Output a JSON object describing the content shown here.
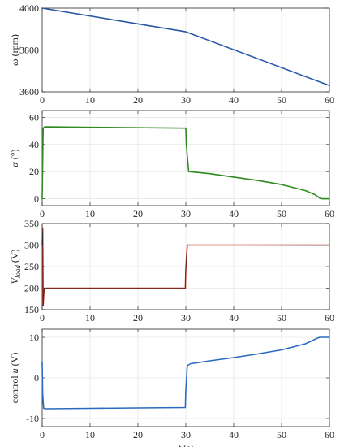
{
  "chart_data": [
    {
      "type": "line",
      "id": "omega",
      "ylabel_parts": [
        {
          "t": "ω",
          "i": true
        },
        {
          "t": " (rpm)"
        }
      ],
      "xlim": [
        0,
        60
      ],
      "ylim": [
        3600,
        4000
      ],
      "xticks": [
        0,
        10,
        20,
        30,
        40,
        50,
        60
      ],
      "yticks": [
        3600,
        3800,
        4000
      ],
      "grid": true,
      "series": [
        {
          "color": "#2857a4",
          "x": [
            0,
            30,
            60
          ],
          "y": [
            4000,
            3887,
            3630
          ]
        }
      ]
    },
    {
      "type": "line",
      "id": "alpha",
      "ylabel_parts": [
        {
          "t": "α",
          "i": true
        },
        {
          "t": " (°)"
        }
      ],
      "xlim": [
        0,
        60
      ],
      "ylim": [
        -5,
        65
      ],
      "xticks": [
        0,
        10,
        20,
        30,
        40,
        50,
        60
      ],
      "yticks": [
        0,
        20,
        40,
        60
      ],
      "grid": true,
      "series": [
        {
          "color": "#2e8b1e",
          "x": [
            0,
            0.2,
            0.5,
            30,
            30.1,
            30.6,
            35,
            40,
            45,
            50,
            55,
            57,
            58,
            58.5,
            60
          ],
          "y": [
            0,
            52,
            53,
            52,
            40,
            20,
            18.5,
            16,
            13.5,
            10.5,
            6,
            3,
            0.5,
            0,
            0
          ]
        }
      ]
    },
    {
      "type": "line",
      "id": "vload",
      "ylabel_parts": [
        {
          "t": "V",
          "i": true
        },
        {
          "t": "load",
          "i": true,
          "sub": true
        },
        {
          "t": " (V)"
        }
      ],
      "xlim": [
        0,
        60
      ],
      "ylim": [
        150,
        350
      ],
      "xticks": [
        0,
        10,
        20,
        30,
        40,
        50,
        60
      ],
      "yticks": [
        150,
        200,
        250,
        300,
        350
      ],
      "grid": true,
      "series": [
        {
          "color": "#cc2a1a",
          "x": [
            0,
            0.1,
            0.2,
            0.4,
            1,
            29.9,
            30,
            30.3,
            31,
            60
          ],
          "y": [
            300,
            340,
            160,
            200,
            200,
            200,
            245,
            300,
            300,
            300
          ]
        },
        {
          "color": "#2e2e2e",
          "x": [
            0,
            0.1,
            0.2,
            0.4,
            1,
            29.9,
            30,
            30.3,
            31,
            60
          ],
          "y": [
            300,
            340,
            160,
            200,
            200,
            200,
            245,
            300,
            300,
            299
          ]
        }
      ]
    },
    {
      "type": "line",
      "id": "control",
      "ylabel_parts": [
        {
          "t": "control "
        },
        {
          "t": "u",
          "i": true
        },
        {
          "t": " (V)"
        }
      ],
      "xlabel_parts": [
        {
          "t": "t",
          "i": true
        },
        {
          "t": "  (s)"
        }
      ],
      "xlim": [
        0,
        60
      ],
      "ylim": [
        -12,
        12
      ],
      "xticks": [
        0,
        10,
        20,
        30,
        40,
        50,
        60
      ],
      "yticks": [
        -10,
        0,
        10
      ],
      "grid": true,
      "series": [
        {
          "color": "#2a6bbf",
          "x": [
            0,
            0.1,
            0.3,
            0.8,
            10,
            20,
            29.9,
            30,
            30.3,
            31,
            35,
            40,
            45,
            50,
            55,
            57.5,
            58,
            60
          ],
          "y": [
            4,
            -4,
            -7.5,
            -7.6,
            -7.5,
            -7.4,
            -7.3,
            -3,
            3,
            3.5,
            4.2,
            5.0,
            5.9,
            6.9,
            8.4,
            9.8,
            10,
            10
          ]
        }
      ]
    }
  ]
}
